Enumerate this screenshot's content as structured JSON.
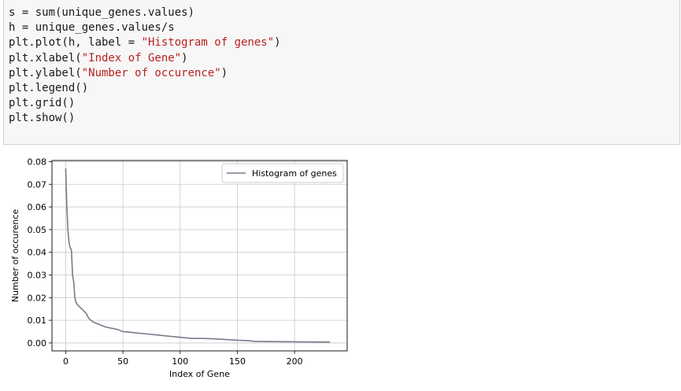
{
  "code_cell": {
    "lines": [
      {
        "text": "s = sum(unique_genes.values)"
      },
      {
        "text": "h = unique_genes.values/s"
      },
      {
        "pre": "plt.plot(h, label = ",
        "str": "\"Histogram of genes\"",
        "post": ")"
      },
      {
        "pre": "plt.xlabel(",
        "str": "\"Index of Gene\"",
        "post": ")"
      },
      {
        "pre": "plt.ylabel(",
        "str": "\"Number of occurence\"",
        "post": ")"
      },
      {
        "text": "plt.legend()"
      },
      {
        "text": "plt.grid()"
      },
      {
        "text": "plt.show()"
      }
    ]
  },
  "chart_data": {
    "type": "line",
    "title": "",
    "xlabel": "Index of Gene",
    "ylabel": "Number of occurence",
    "xlim": [
      -12,
      246
    ],
    "ylim": [
      -0.0035,
      0.0805
    ],
    "xticks": [
      0,
      50,
      100,
      150,
      200
    ],
    "yticks": [
      0.0,
      0.01,
      0.02,
      0.03,
      0.04,
      0.05,
      0.06,
      0.07,
      0.08
    ],
    "xtick_labels": [
      "0",
      "50",
      "100",
      "150",
      "200"
    ],
    "ytick_labels": [
      "0.00",
      "0.01",
      "0.02",
      "0.03",
      "0.04",
      "0.05",
      "0.06",
      "0.07",
      "0.08"
    ],
    "grid": true,
    "legend_position": "top-right",
    "series": [
      {
        "name": "Histogram of genes",
        "color": "#7a7a8c",
        "x": [
          0,
          1,
          2,
          3,
          4,
          5,
          6,
          7,
          8,
          9,
          10,
          12,
          14,
          16,
          18,
          20,
          22,
          25,
          30,
          35,
          40,
          45,
          50,
          55,
          60,
          70,
          80,
          90,
          100,
          110,
          120,
          130,
          140,
          150,
          160,
          165,
          180,
          200,
          231
        ],
        "y": [
          0.077,
          0.06,
          0.049,
          0.044,
          0.042,
          0.041,
          0.03,
          0.027,
          0.02,
          0.018,
          0.017,
          0.016,
          0.015,
          0.014,
          0.013,
          0.011,
          0.01,
          0.009,
          0.008,
          0.007,
          0.0065,
          0.006,
          0.005,
          0.0048,
          0.0045,
          0.004,
          0.0035,
          0.003,
          0.0025,
          0.002,
          0.002,
          0.0018,
          0.0015,
          0.0012,
          0.001,
          0.0007,
          0.0006,
          0.0005,
          0.0004
        ]
      }
    ]
  }
}
